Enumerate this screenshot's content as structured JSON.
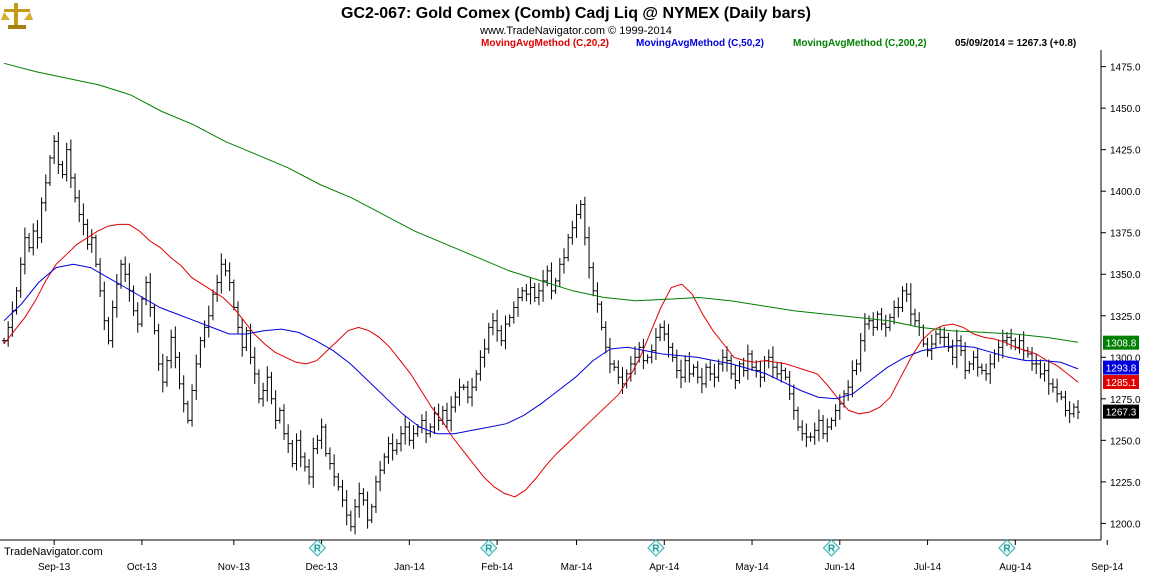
{
  "header": {
    "title": "GC2-067:  Gold Comex (Comb) Cadj Liq @ NYMEX  (Daily bars)",
    "copyright": "www.TradeNavigator.com © 1999-2014"
  },
  "brand": {
    "label": "TradeNavigator.com",
    "logo_icon": "gold-scale-icon",
    "marker_icon": "r-diamond-icon"
  },
  "legend": [
    {
      "label": "MovingAvgMethod (C,20,2)",
      "color": "#e00000"
    },
    {
      "label": "MovingAvgMethod (C,50,2)",
      "color": "#0000dd"
    },
    {
      "label": "MovingAvgMethod (C,200,2)",
      "color": "#008000"
    }
  ],
  "last_info": "05/09/2014 = 1267.3 (+0.8)",
  "chart_data": {
    "type": "line",
    "title": "GC2-067:  Gold Comex (Comb) Cadj Liq @ NYMEX  (Daily bars)",
    "ylim": [
      1190,
      1485
    ],
    "y_ticks": [
      "1475.0",
      "1450.0",
      "1425.0",
      "1400.0",
      "1375.0",
      "1350.0",
      "1325.0",
      "1300.0",
      "1275.0",
      "1250.0",
      "1225.0",
      "1200.0"
    ],
    "y_tick_values": [
      1475,
      1450,
      1425,
      1400,
      1375,
      1350,
      1325,
      1300,
      1275,
      1250,
      1225,
      1200
    ],
    "x_ticks": [
      "Sep-13",
      "Oct-13",
      "Nov-13",
      "Dec-13",
      "Jan-14",
      "Feb-14",
      "Mar-14",
      "Apr-14",
      "May-14",
      "Jun-14",
      "Jul-14",
      "Aug-14",
      "Sep-14"
    ],
    "x_tick_index": [
      12,
      33,
      55,
      76,
      97,
      118,
      137,
      158,
      179,
      200,
      221,
      242,
      264
    ],
    "r_marker_index": [
      75,
      116,
      156,
      198,
      240
    ],
    "price_labels": [
      {
        "text": "1308.8",
        "value": 1308.8,
        "color": "#008000"
      },
      {
        "text": "1293.8",
        "value": 1293.8,
        "color": "#0000dd"
      },
      {
        "text": "1285.1",
        "value": 1285.1,
        "color": "#e00000"
      },
      {
        "text": "1267.3",
        "value": 1267.3,
        "color": "#000000"
      }
    ],
    "series": [
      {
        "name": "Close",
        "color": "#000000",
        "values": [
          1310,
          1318,
          1328,
          1340,
          1356,
          1372,
          1366,
          1376,
          1372,
          1393,
          1405,
          1420,
          1430,
          1416,
          1410,
          1425,
          1408,
          1396,
          1386,
          1380,
          1368,
          1372,
          1356,
          1340,
          1322,
          1310,
          1330,
          1344,
          1356,
          1350,
          1340,
          1328,
          1320,
          1335,
          1345,
          1330,
          1316,
          1296,
          1285,
          1298,
          1312,
          1300,
          1284,
          1272,
          1262,
          1280,
          1296,
          1310,
          1318,
          1325,
          1338,
          1345,
          1356,
          1352,
          1345,
          1330,
          1318,
          1306,
          1316,
          1300,
          1290,
          1275,
          1280,
          1288,
          1275,
          1262,
          1268,
          1254,
          1248,
          1236,
          1250,
          1240,
          1234,
          1228,
          1245,
          1250,
          1258,
          1242,
          1236,
          1228,
          1222,
          1214,
          1205,
          1198,
          1210,
          1218,
          1214,
          1202,
          1210,
          1225,
          1232,
          1240,
          1248,
          1244,
          1248,
          1254,
          1258,
          1250,
          1254,
          1258,
          1262,
          1254,
          1258,
          1266,
          1262,
          1268,
          1262,
          1270,
          1276,
          1282,
          1282,
          1276,
          1282,
          1290,
          1300,
          1305,
          1318,
          1322,
          1316,
          1310,
          1320,
          1324,
          1330,
          1336,
          1340,
          1338,
          1342,
          1336,
          1340,
          1346,
          1352,
          1340,
          1346,
          1356,
          1360,
          1372,
          1378,
          1386,
          1392,
          1372,
          1354,
          1340,
          1332,
          1318,
          1306,
          1296,
          1294,
          1288,
          1284,
          1290,
          1296,
          1300,
          1306,
          1298,
          1300,
          1304,
          1312,
          1318,
          1314,
          1306,
          1300,
          1292,
          1288,
          1298,
          1290,
          1294,
          1288,
          1284,
          1294,
          1290,
          1288,
          1296,
          1300,
          1298,
          1290,
          1286,
          1296,
          1292,
          1302,
          1294,
          1292,
          1288,
          1298,
          1300,
          1294,
          1290,
          1292,
          1288,
          1278,
          1268,
          1258,
          1254,
          1252,
          1252,
          1256,
          1262,
          1254,
          1258,
          1262,
          1268,
          1272,
          1278,
          1282,
          1292,
          1296,
          1310,
          1320,
          1322,
          1318,
          1326,
          1320,
          1318,
          1324,
          1330,
          1330,
          1340,
          1338,
          1326,
          1322,
          1318,
          1308,
          1304,
          1308,
          1314,
          1312,
          1312,
          1306,
          1300,
          1310,
          1304,
          1292,
          1296,
          1300,
          1294,
          1292,
          1290,
          1296,
          1302,
          1306,
          1310,
          1312,
          1310,
          1306,
          1310,
          1304,
          1302,
          1296,
          1296,
          1290,
          1292,
          1284,
          1282,
          1278,
          1276,
          1268,
          1266,
          1270,
          1267
        ]
      },
      {
        "name": "MovingAvgMethod (C,20,2)",
        "color": "#e00000",
        "values": [
          1308,
          1316,
          1324,
          1334,
          1346,
          1356,
          1362,
          1368,
          1372,
          1376,
          1379,
          1380,
          1380,
          1376,
          1370,
          1366,
          1360,
          1355,
          1348,
          1344,
          1340,
          1336,
          1330,
          1322,
          1314,
          1308,
          1303,
          1300,
          1297,
          1296,
          1298,
          1304,
          1310,
          1316,
          1318,
          1316,
          1312,
          1306,
          1298,
          1290,
          1280,
          1270,
          1262,
          1252,
          1244,
          1236,
          1228,
          1222,
          1218,
          1216,
          1220,
          1227,
          1235,
          1242,
          1248,
          1254,
          1260,
          1266,
          1272,
          1278,
          1288,
          1300,
          1315,
          1330,
          1342,
          1344,
          1338,
          1326,
          1316,
          1308,
          1300,
          1298,
          1297,
          1298,
          1297,
          1296,
          1294,
          1292,
          1290,
          1283,
          1275,
          1268,
          1266,
          1267,
          1270,
          1276,
          1288,
          1300,
          1310,
          1316,
          1319,
          1320,
          1318,
          1314,
          1312,
          1311,
          1309,
          1306,
          1304,
          1302,
          1298,
          1295,
          1290,
          1285
        ]
      },
      {
        "name": "MovingAvgMethod (C,50,2)",
        "color": "#0000dd",
        "values": [
          1322,
          1332,
          1345,
          1354,
          1356,
          1354,
          1348,
          1342,
          1336,
          1330,
          1326,
          1322,
          1318,
          1314,
          1314,
          1316,
          1317,
          1315,
          1310,
          1304,
          1296,
          1286,
          1276,
          1266,
          1258,
          1254,
          1254,
          1256,
          1258,
          1260,
          1265,
          1272,
          1280,
          1288,
          1298,
          1305,
          1306,
          1304,
          1302,
          1301,
          1300,
          1298,
          1296,
          1293,
          1290,
          1285,
          1280,
          1276,
          1275,
          1278,
          1286,
          1294,
          1300,
          1304,
          1306,
          1307,
          1306,
          1303,
          1300,
          1298,
          1298,
          1297,
          1293
        ]
      },
      {
        "name": "MovingAvgMethod (C,200,2)",
        "color": "#008000",
        "values": [
          1477,
          1472,
          1468,
          1464,
          1458,
          1448,
          1440,
          1430,
          1422,
          1414,
          1404,
          1396,
          1386,
          1376,
          1368,
          1360,
          1352,
          1346,
          1340,
          1336,
          1334,
          1335,
          1336,
          1334,
          1331,
          1328,
          1326,
          1324,
          1322,
          1318,
          1316,
          1315,
          1314,
          1312,
          1309
        ]
      }
    ]
  }
}
